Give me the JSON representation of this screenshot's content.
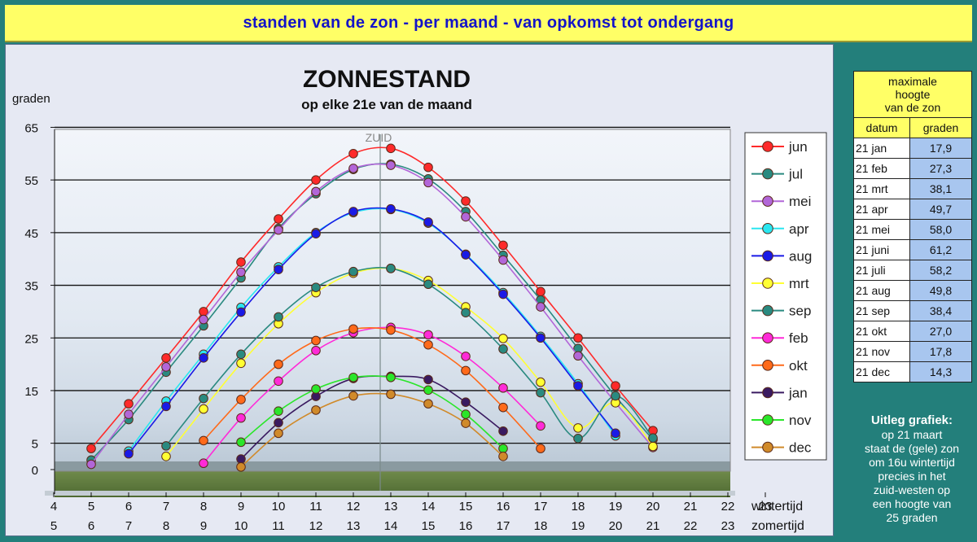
{
  "banner": {
    "title": "standen van de zon - per maand - van opkomst tot ondergang"
  },
  "chart_data": {
    "type": "line",
    "title": "ZONNESTAND",
    "subtitle": "op elke 21e van de maand",
    "ylabel": "graden",
    "zuid_label": "ZUID",
    "ylim": [
      0,
      65
    ],
    "yticks": [
      0,
      5,
      15,
      25,
      35,
      45,
      55,
      65
    ],
    "xlim": [
      4,
      23
    ],
    "xticks_wintertijd": [
      4,
      5,
      6,
      7,
      8,
      9,
      10,
      11,
      12,
      13,
      14,
      15,
      16,
      17,
      18,
      19,
      20,
      21,
      22,
      23
    ],
    "xticks_zomertijd": [
      5,
      6,
      7,
      8,
      9,
      10,
      11,
      12,
      13,
      14,
      15,
      16,
      17,
      18,
      19,
      20,
      21,
      22,
      23
    ],
    "xlabel_wintertijd": "wintertijd",
    "xlabel_zomertijd": "zomertijd",
    "grid": true,
    "legend_position": "right",
    "series": [
      {
        "name": "jun",
        "color": "#ff2a2a",
        "x": [
          5,
          6,
          7,
          8,
          9,
          10,
          11,
          12,
          13,
          14,
          15,
          16,
          17,
          18,
          19,
          20
        ],
        "y": [
          4,
          12.5,
          21.2,
          30,
          39.4,
          47.6,
          55,
          60,
          61,
          57.4,
          51,
          42.6,
          33.8,
          25,
          15.9,
          7.4
        ]
      },
      {
        "name": "jul",
        "color": "#2a8a80",
        "x": [
          5,
          6,
          7,
          8,
          9,
          10,
          11,
          12,
          13,
          14,
          15,
          16,
          17,
          18,
          19,
          20
        ],
        "y": [
          1.8,
          9.5,
          18.5,
          27.3,
          36.4,
          45.8,
          52.4,
          57,
          58,
          55.2,
          49,
          40.7,
          32.2,
          23,
          13.9,
          5.7
        ]
      },
      {
        "name": "mei",
        "color": "#b266d8",
        "x": [
          5,
          6,
          7,
          8,
          9,
          10,
          11,
          12,
          13,
          14,
          15,
          16,
          17,
          18,
          19,
          20
        ],
        "y": [
          1,
          10.5,
          19.5,
          28.5,
          37.5,
          45.5,
          52.8,
          57.2,
          57.8,
          54.5,
          48,
          39.8,
          30.9,
          21.6,
          12.7,
          4.2
        ]
      },
      {
        "name": "apr",
        "color": "#2ae6f0",
        "x": [
          6,
          7,
          8,
          9,
          10,
          11,
          12,
          13,
          14,
          15,
          16,
          17,
          18,
          19
        ],
        "y": [
          3.5,
          13,
          21.9,
          30.8,
          38.5,
          45,
          48.8,
          49.4,
          46.8,
          40.9,
          33.6,
          25.3,
          16.3,
          6.4
        ]
      },
      {
        "name": "aug",
        "color": "#1a1ae6",
        "x": [
          6,
          7,
          8,
          9,
          10,
          11,
          12,
          13,
          14,
          15,
          16,
          17,
          18,
          19
        ],
        "y": [
          3,
          12,
          21.2,
          29.9,
          38,
          44.8,
          49,
          49.5,
          47,
          40.8,
          33.3,
          25,
          15.9,
          6.9
        ]
      },
      {
        "name": "mrt",
        "color": "#ffff33",
        "x": [
          7,
          8,
          9,
          10,
          11,
          12,
          13,
          14,
          15,
          16,
          17,
          18,
          19,
          20
        ],
        "y": [
          2.5,
          11.5,
          20.2,
          27.7,
          33.6,
          37.3,
          38.2,
          35.9,
          30.9,
          24.9,
          16.6,
          7.9,
          12.7,
          4.4
        ]
      },
      {
        "name": "sep",
        "color": "#2a8a80",
        "x": [
          7,
          8,
          9,
          10,
          11,
          12,
          13,
          14,
          15,
          16,
          17,
          18,
          19,
          20
        ],
        "y": [
          4.5,
          13.5,
          21.9,
          29,
          34.6,
          37.6,
          38.2,
          35.2,
          29.8,
          22.9,
          14.6,
          5.9,
          14,
          6
        ]
      },
      {
        "name": "feb",
        "color": "#ff2ad8",
        "x": [
          8,
          9,
          10,
          11,
          12,
          13,
          14,
          15,
          16,
          17
        ],
        "y": [
          1.2,
          9.8,
          16.8,
          22.6,
          26,
          27,
          25.6,
          21.5,
          15.5,
          8.3
        ]
      },
      {
        "name": "okt",
        "color": "#ff6a1a",
        "x": [
          8,
          9,
          10,
          11,
          12,
          13,
          14,
          15,
          16,
          17
        ],
        "y": [
          5.5,
          13.3,
          20,
          24.5,
          26.7,
          26.5,
          23.7,
          18.8,
          11.8,
          4
        ]
      },
      {
        "name": "jan",
        "color": "#3a1a60",
        "x": [
          9,
          10,
          11,
          12,
          13,
          14,
          15,
          16
        ],
        "y": [
          2,
          8.9,
          13.9,
          17.3,
          17.7,
          17.1,
          12.8,
          7.3
        ]
      },
      {
        "name": "nov",
        "color": "#2ae62a",
        "x": [
          9,
          10,
          11,
          12,
          13,
          14,
          15,
          16
        ],
        "y": [
          5.2,
          11.1,
          15.3,
          17.5,
          17.5,
          15.1,
          10.5,
          4
        ]
      },
      {
        "name": "dec",
        "color": "#d08a2a",
        "x": [
          9,
          10,
          11,
          12,
          13,
          14,
          15,
          16
        ],
        "y": [
          0.5,
          6.9,
          11.3,
          14,
          14.3,
          12.5,
          8.8,
          2.5
        ]
      }
    ]
  },
  "side_panel": {
    "table_header": [
      "maximale",
      "hoogte",
      "van de zon"
    ],
    "col_datum": "datum",
    "col_graden": "graden",
    "rows": [
      {
        "datum": "21 jan",
        "graden": "17,9"
      },
      {
        "datum": "21 feb",
        "graden": "27,3"
      },
      {
        "datum": "21 mrt",
        "graden": "38,1"
      },
      {
        "datum": "21 apr",
        "graden": "49,7"
      },
      {
        "datum": "21 mei",
        "graden": "58,0"
      },
      {
        "datum": "21 juni",
        "graden": "61,2"
      },
      {
        "datum": "21 juli",
        "graden": "58,2"
      },
      {
        "datum": "21 aug",
        "graden": "49,8"
      },
      {
        "datum": "21 sep",
        "graden": "38,4"
      },
      {
        "datum": "21 okt",
        "graden": "27,0"
      },
      {
        "datum": "21 nov",
        "graden": "17,8"
      },
      {
        "datum": "21 dec",
        "graden": "14,3"
      }
    ],
    "explain_title": "Uitleg grafiek:",
    "explain_lines": [
      "op 21 maart",
      "staat de (gele) zon",
      "om 16u wintertijd",
      "precies in het",
      "zuid-westen op",
      "een hoogte van",
      "25 graden"
    ]
  }
}
